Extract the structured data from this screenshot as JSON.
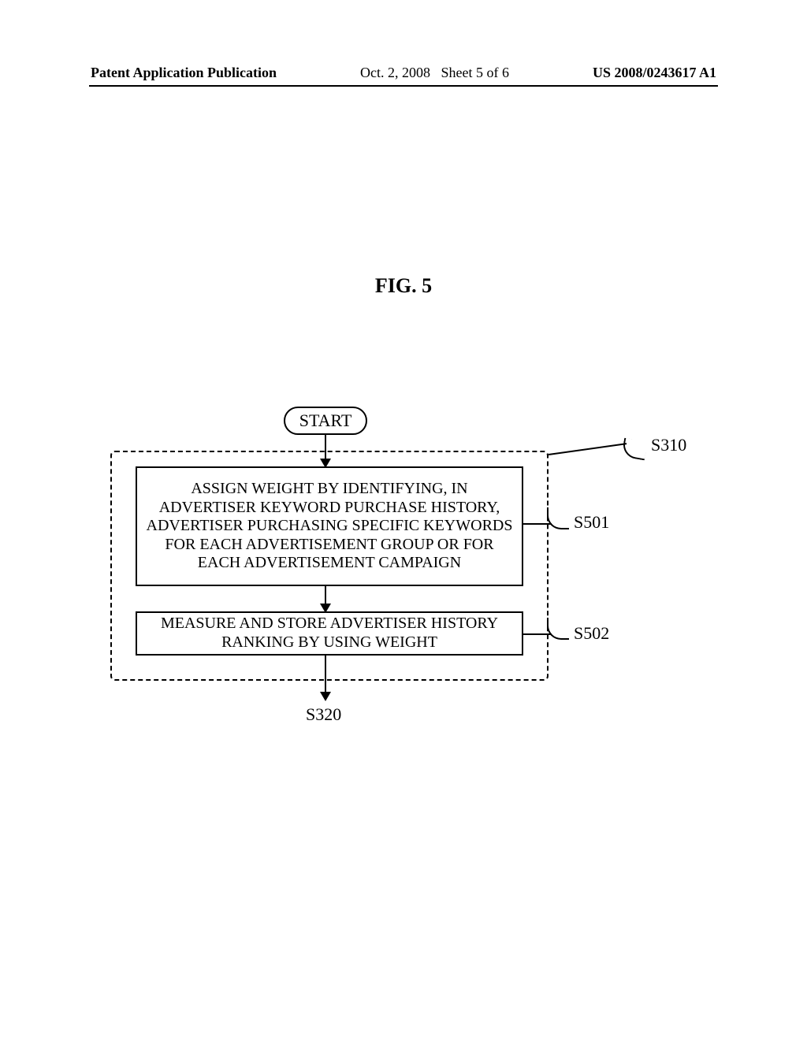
{
  "header": {
    "left": "Patent Application Publication",
    "date": "Oct. 2, 2008",
    "sheet": "Sheet 5 of 6",
    "pubnum": "US 2008/0243617 A1"
  },
  "figure": {
    "title": "FIG. 5",
    "start": "START",
    "box1": "ASSIGN WEIGHT BY IDENTIFYING, IN ADVERTISER KEYWORD PURCHASE HISTORY, ADVERTISER PURCHASING SPECIFIC KEYWORDS FOR EACH ADVERTISEMENT GROUP OR FOR EACH ADVERTISEMENT CAMPAIGN",
    "box2": "MEASURE AND STORE ADVERTISER HISTORY RANKING BY USING WEIGHT",
    "labels": {
      "s310": "S310",
      "s501": "S501",
      "s502": "S502",
      "s320": "S320"
    }
  },
  "style": {
    "type": "flowchart",
    "background_color": "#ffffff",
    "line_color": "#000000",
    "font_family": "Times New Roman",
    "title_fontsize": 26,
    "box_fontsize": 20,
    "label_fontsize": 22,
    "box_border_width": 2.5,
    "dashed_border_width": 2
  }
}
